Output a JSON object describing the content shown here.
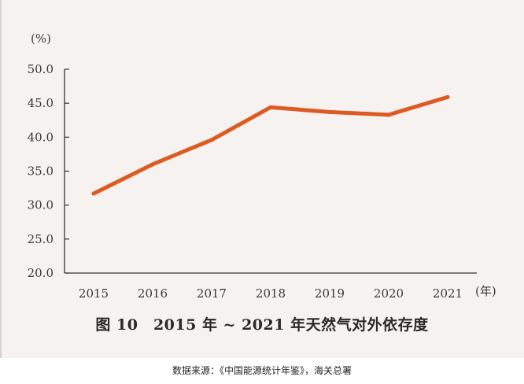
{
  "chart_data": {
    "type": "line",
    "title": "图 10　2015 年 ~ 2021 年天然气对外依存度",
    "y_unit": "(%)",
    "x_unit": "(年)",
    "categories": [
      "2015",
      "2016",
      "2017",
      "2018",
      "2019",
      "2020",
      "2021"
    ],
    "series": [
      {
        "values": [
          31.7,
          36.0,
          39.6,
          44.4,
          43.7,
          43.3,
          45.9
        ]
      }
    ],
    "ylim": [
      20.0,
      50.0
    ],
    "y_ticks": [
      "20.0",
      "25.0",
      "30.0",
      "35.0",
      "40.0",
      "45.0",
      "50.0"
    ],
    "grid": false,
    "line_color": "#de5a23"
  },
  "source_note": "数据来源：《中国能源统计年鉴》，海关总署"
}
